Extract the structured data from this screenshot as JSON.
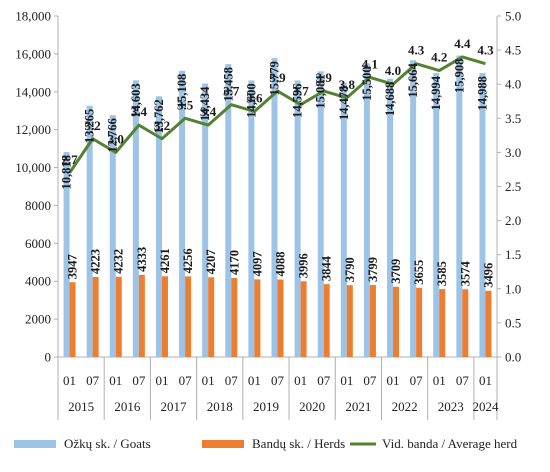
{
  "chart_data": {
    "type": "bar",
    "categories": [
      "01",
      "07",
      "01",
      "07",
      "01",
      "07",
      "01",
      "07",
      "01",
      "07",
      "01",
      "07",
      "01",
      "07",
      "01",
      "07",
      "01",
      "07",
      "01"
    ],
    "years": [
      "2015",
      "2016",
      "2017",
      "2018",
      "2019",
      "2020",
      "2021",
      "2022",
      "2023",
      "2024"
    ],
    "series": [
      {
        "name": "Ožkų sk. / Goats",
        "type": "bar",
        "axis": "left",
        "color": "#9dc3e6",
        "values": [
          10818,
          13265,
          12766,
          14603,
          13762,
          15108,
          14434,
          15458,
          14600,
          15779,
          14596,
          15081,
          14478,
          15500,
          14688,
          15664,
          14994,
          15908,
          14988
        ],
        "labels": [
          "10,818",
          "13,265",
          "12,766",
          "14,603",
          "13,762",
          "15,108",
          "14,434",
          "15,458",
          "14,600",
          "15,779",
          "14,596",
          "15,081",
          "14,478",
          "15,500",
          "14,688",
          "15,664",
          "14,994",
          "15,908",
          "14,988"
        ]
      },
      {
        "name": "Bandų sk. / Herds",
        "type": "bar",
        "axis": "left",
        "color": "#ed7d31",
        "values": [
          3947,
          4223,
          4232,
          4333,
          4261,
          4256,
          4207,
          4170,
          4097,
          4088,
          3996,
          3844,
          3790,
          3799,
          3709,
          3655,
          3585,
          3574,
          3496
        ],
        "labels": [
          "3947",
          "4223",
          "4232",
          "4333",
          "4261",
          "4256",
          "4207",
          "4170",
          "4097",
          "4088",
          "3996",
          "3844",
          "3790",
          "3799",
          "3709",
          "3655",
          "3585",
          "3574",
          "3496"
        ]
      },
      {
        "name": "Vid. banda / Average herd",
        "type": "line",
        "axis": "right",
        "color": "#548235",
        "values": [
          2.7,
          3.2,
          3.0,
          3.4,
          3.2,
          3.5,
          3.4,
          3.7,
          3.6,
          3.9,
          3.7,
          3.9,
          3.8,
          4.1,
          4.0,
          4.3,
          4.2,
          4.4,
          4.3
        ],
        "labels": [
          "2.7",
          "3.2",
          "3.0",
          "3.4",
          "3.2",
          "3.5",
          "3.4",
          "3.7",
          "3.6",
          "3.9",
          "3.7",
          "3.9",
          "3.8",
          "4.1",
          "4.0",
          "4.3",
          "4.2",
          "4.4",
          "4.3"
        ]
      }
    ],
    "ylim_left": [
      0,
      18000
    ],
    "yticks_left": [
      "0",
      "2000",
      "4000",
      "6000",
      "8000",
      "10,000",
      "12,000",
      "14,000",
      "16,000",
      "18,000"
    ],
    "ylim_right": [
      0,
      5
    ],
    "yticks_right": [
      "0.0",
      "0.5",
      "1.0",
      "1.5",
      "2.0",
      "2.5",
      "3.0",
      "3.5",
      "4.0",
      "4.5",
      "5.0"
    ],
    "legend_position": "bottom",
    "grid": false
  }
}
